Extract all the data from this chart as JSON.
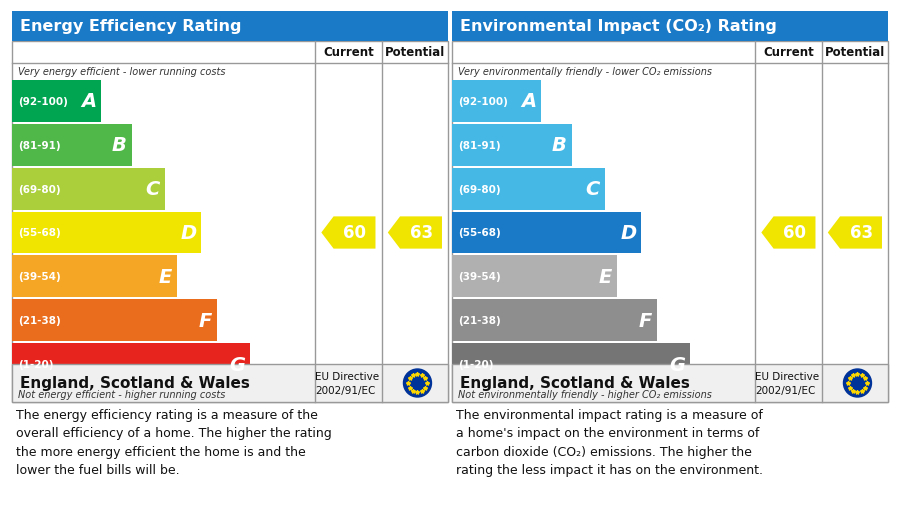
{
  "left_title": "Energy Efficiency Rating",
  "right_title": "Environmental Impact (CO₂) Rating",
  "title_bg": "#1a7ac8",
  "bands_epc": [
    {
      "label": "A",
      "range": "(92-100)",
      "color": "#00a551",
      "wf": 0.295
    },
    {
      "label": "B",
      "range": "(81-91)",
      "color": "#50b848",
      "wf": 0.395
    },
    {
      "label": "C",
      "range": "(69-80)",
      "color": "#aacf3a",
      "wf": 0.505
    },
    {
      "label": "D",
      "range": "(55-68)",
      "color": "#f0e500",
      "wf": 0.625
    },
    {
      "label": "E",
      "range": "(39-54)",
      "color": "#f6a625",
      "wf": 0.545
    },
    {
      "label": "F",
      "range": "(21-38)",
      "color": "#ea6c1d",
      "wf": 0.675
    },
    {
      "label": "G",
      "range": "(1-20)",
      "color": "#e8241f",
      "wf": 0.785
    }
  ],
  "bands_env": [
    {
      "label": "A",
      "range": "(92-100)",
      "color": "#45b8e6",
      "wf": 0.295
    },
    {
      "label": "B",
      "range": "(81-91)",
      "color": "#45b8e6",
      "wf": 0.395
    },
    {
      "label": "C",
      "range": "(69-80)",
      "color": "#45b8e6",
      "wf": 0.505
    },
    {
      "label": "D",
      "range": "(55-68)",
      "color": "#1a7ac8",
      "wf": 0.625
    },
    {
      "label": "E",
      "range": "(39-54)",
      "color": "#b0b0b0",
      "wf": 0.545
    },
    {
      "label": "F",
      "range": "(21-38)",
      "color": "#8e8e8e",
      "wf": 0.675
    },
    {
      "label": "G",
      "range": "(1-20)",
      "color": "#757575",
      "wf": 0.785
    }
  ],
  "epc_top_text": "Very energy efficient - lower running costs",
  "epc_bottom_text": "Not energy efficient - higher running costs",
  "env_top_text": "Very environmentally friendly - lower CO₂ emissions",
  "env_bottom_text": "Not environmentally friendly - higher CO₂ emissions",
  "current_value": 60,
  "potential_value": 63,
  "arrow_color": "#f0e500",
  "footer_org": "England, Scotland & Wales",
  "footer_eu": "EU Directive\n2002/91/EC",
  "left_desc": "The energy efficiency rating is a measure of the\noverall efficiency of a home. The higher the rating\nthe more energy efficient the home is and the\nlower the fuel bills will be.",
  "right_desc": "The environmental impact rating is a measure of\na home's impact on the environment in terms of\ncarbon dioxide (CO₂) emissions. The higher the\nrating the less impact it has on the environment."
}
